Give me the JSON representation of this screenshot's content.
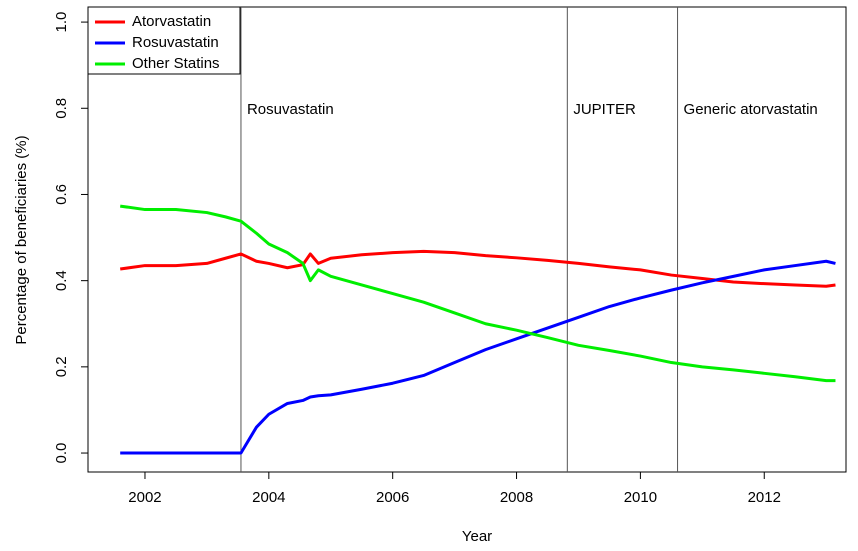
{
  "chart_data": {
    "type": "line",
    "xlabel": "Year",
    "ylabel": "Percentage of beneficiaries (%)",
    "x": [
      2001.6,
      2002.0,
      2002.5,
      2003.0,
      2003.3,
      2003.55,
      2003.8,
      2004.0,
      2004.3,
      2004.55,
      2004.67,
      2004.8,
      2005.0,
      2005.5,
      2006.0,
      2006.5,
      2007.0,
      2007.5,
      2008.0,
      2008.5,
      2009.0,
      2009.5,
      2010.0,
      2010.5,
      2011.0,
      2011.5,
      2012.0,
      2012.5,
      2013.0,
      2013.15
    ],
    "series": [
      {
        "name": "Atorvastatin",
        "color": "#ff0000",
        "values": [
          0.427,
          0.435,
          0.435,
          0.44,
          0.452,
          0.462,
          0.445,
          0.44,
          0.43,
          0.437,
          0.462,
          0.44,
          0.452,
          0.46,
          0.465,
          0.468,
          0.465,
          0.458,
          0.453,
          0.447,
          0.44,
          0.432,
          0.425,
          0.413,
          0.405,
          0.397,
          0.393,
          0.39,
          0.387,
          0.39
        ]
      },
      {
        "name": "Rosuvastatin",
        "color": "#0000ff",
        "values": [
          0,
          0,
          0,
          0,
          0,
          0,
          0.06,
          0.09,
          0.115,
          0.122,
          0.13,
          0.133,
          0.135,
          0.148,
          0.162,
          0.18,
          0.21,
          0.24,
          0.265,
          0.29,
          0.315,
          0.34,
          0.36,
          0.378,
          0.395,
          0.41,
          0.425,
          0.435,
          0.445,
          0.44
        ]
      },
      {
        "name": "Other Statins",
        "color": "#00ee00",
        "values": [
          0.573,
          0.565,
          0.565,
          0.558,
          0.548,
          0.538,
          0.51,
          0.485,
          0.465,
          0.44,
          0.4,
          0.425,
          0.41,
          0.39,
          0.37,
          0.35,
          0.325,
          0.3,
          0.285,
          0.268,
          0.25,
          0.238,
          0.225,
          0.21,
          0.2,
          0.193,
          0.185,
          0.177,
          0.168,
          0.168
        ]
      }
    ],
    "annotations": [
      {
        "x": 2003.55,
        "label": "Rosuvastatin"
      },
      {
        "x": 2008.82,
        "label": "JUPITER"
      },
      {
        "x": 2010.6,
        "label": "Generic atorvastatin"
      }
    ],
    "xlim": [
      2001.08,
      2013.32
    ],
    "xticks": [
      2002,
      2004,
      2006,
      2008,
      2010,
      2012
    ],
    "ylim": [
      -0.044,
      1.035
    ],
    "yticks": [
      {
        "value": 0,
        "label": "0.0"
      },
      0.2,
      0.4,
      0.6,
      0.8,
      {
        "value": 1,
        "label": "1.0"
      }
    ],
    "legend": "top-left",
    "grid": false
  }
}
